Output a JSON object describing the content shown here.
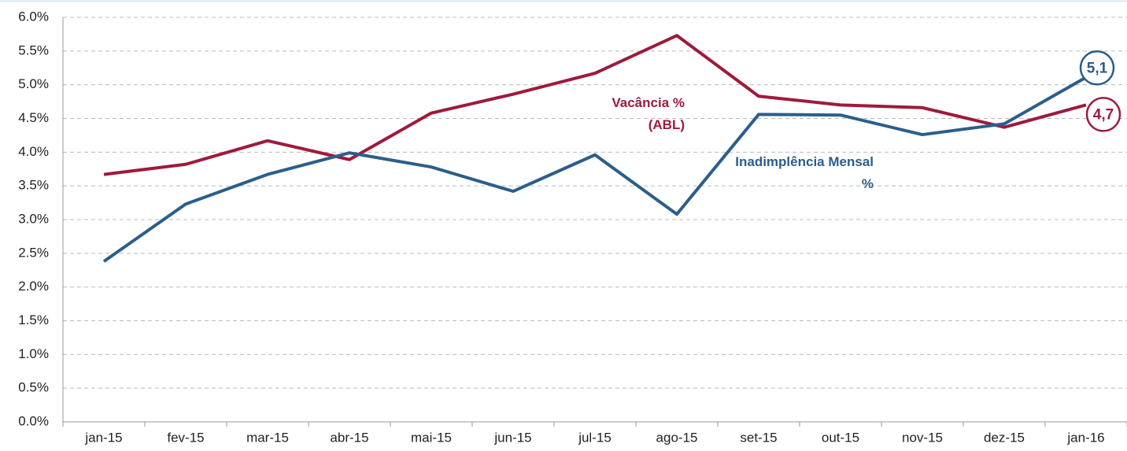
{
  "chart_data": {
    "type": "line",
    "categories": [
      "jan-15",
      "fev-15",
      "mar-15",
      "abr-15",
      "mai-15",
      "jun-15",
      "jul-15",
      "ago-15",
      "set-15",
      "out-15",
      "nov-15",
      "dez-15",
      "jan-16"
    ],
    "series": [
      {
        "name": "Vacância % (ABL)",
        "color": "#9e1a3d",
        "values": [
          3.67,
          3.82,
          4.17,
          3.89,
          4.58,
          4.86,
          5.17,
          5.73,
          4.83,
          4.7,
          4.66,
          4.37,
          4.7
        ],
        "value_labels": [
          null,
          null,
          null,
          null,
          null,
          null,
          null,
          null,
          null,
          null,
          null,
          null,
          "4,7"
        ]
      },
      {
        "name": "Inadimplência Mensal %",
        "color": "#2b5e8b",
        "values": [
          2.38,
          3.23,
          3.67,
          3.99,
          3.78,
          3.42,
          3.96,
          3.08,
          4.56,
          4.55,
          4.26,
          4.42,
          5.11
        ],
        "value_labels": [
          null,
          null,
          null,
          null,
          null,
          null,
          null,
          null,
          null,
          null,
          null,
          null,
          "5,1"
        ]
      }
    ],
    "ylim": [
      0,
      6
    ],
    "yticks": [
      {
        "value": 0,
        "label": "0.0%"
      },
      {
        "value": 0.5,
        "label": "0.5%"
      },
      {
        "value": 1,
        "label": "1.0%"
      },
      {
        "value": 1.5,
        "label": "1.5%"
      },
      {
        "value": 2,
        "label": "2.0%"
      },
      {
        "value": 2.5,
        "label": "2.5%"
      },
      {
        "value": 3,
        "label": "3.0%"
      },
      {
        "value": 3.5,
        "label": "3.5%"
      },
      {
        "value": 4,
        "label": "4.0%"
      },
      {
        "value": 4.5,
        "label": "4.5%"
      },
      {
        "value": 5,
        "label": "5.0%"
      },
      {
        "value": 5.5,
        "label": "5.5%"
      },
      {
        "value": 6,
        "label": "6.0%"
      }
    ],
    "grid": true
  }
}
